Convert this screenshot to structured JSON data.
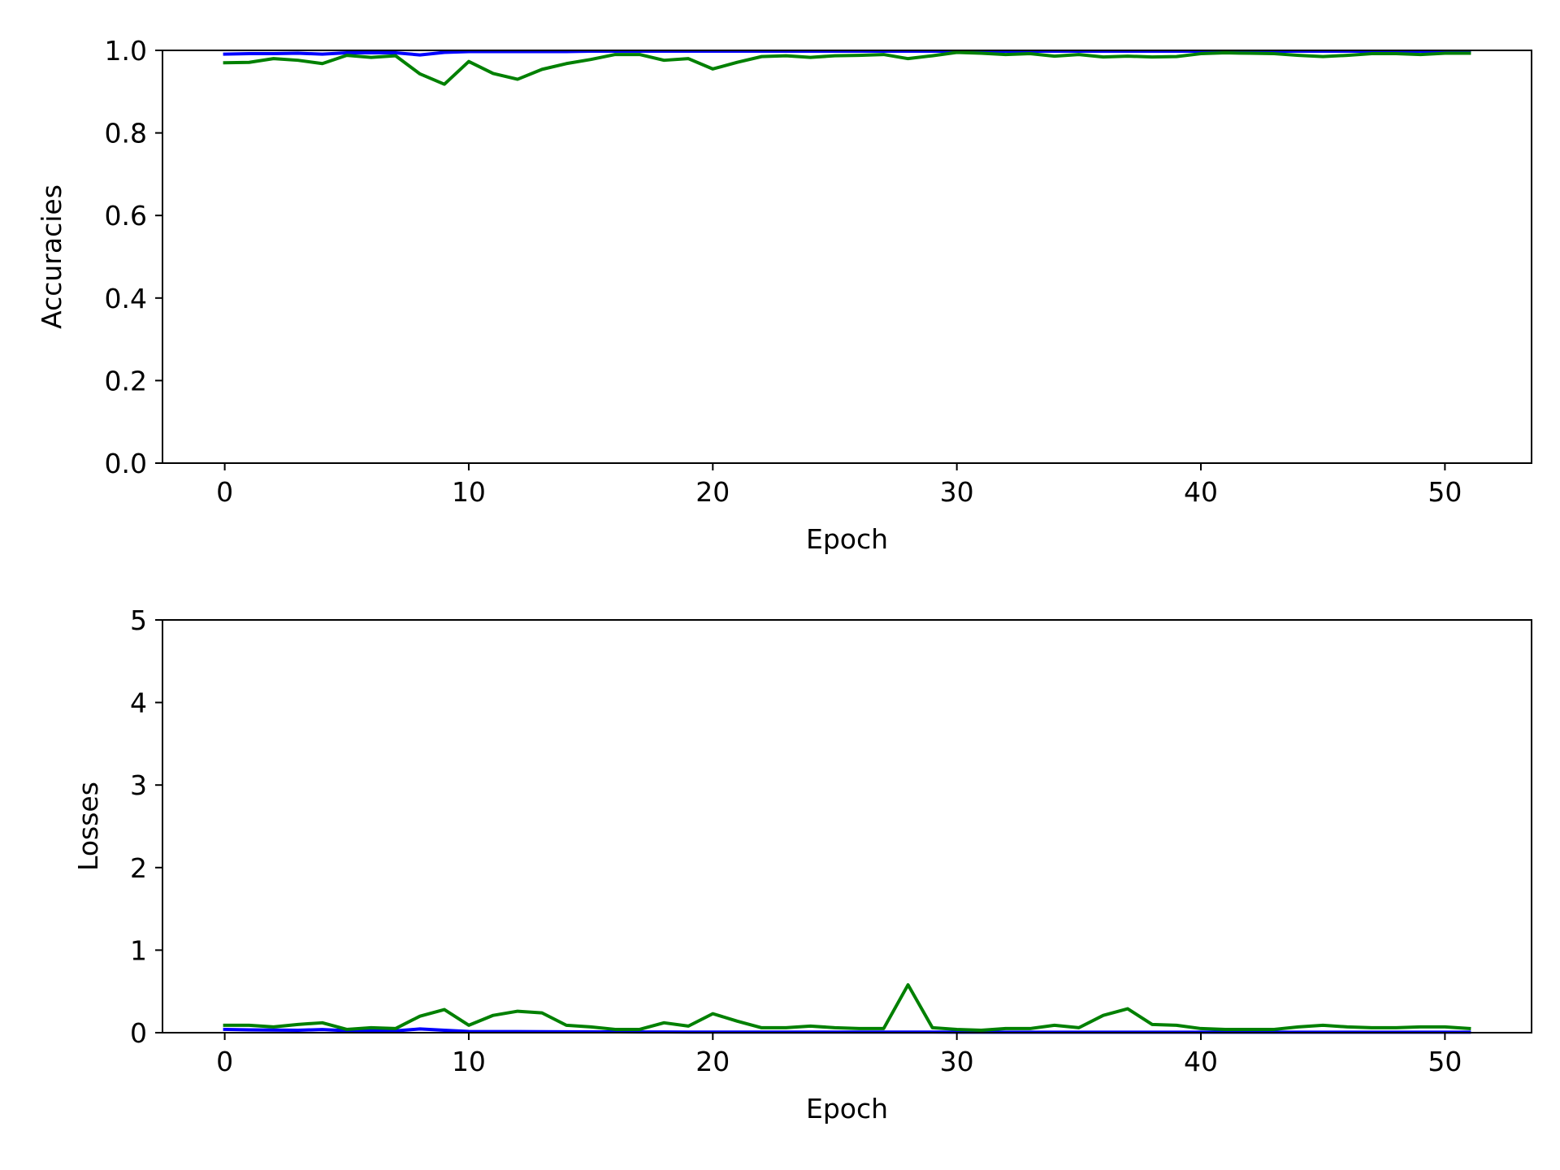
{
  "chart_data": [
    {
      "type": "line",
      "xlabel": "Epoch",
      "ylabel": "Accuracies",
      "xlim": [
        -2.55,
        53.55
      ],
      "ylim": [
        0.0,
        1.0
      ],
      "xticks": [
        0,
        10,
        20,
        30,
        40,
        50
      ],
      "yticks": [
        0.0,
        0.2,
        0.4,
        0.6,
        0.8,
        1.0
      ],
      "xtick_labels": [
        "0",
        "10",
        "20",
        "30",
        "40",
        "50"
      ],
      "ytick_labels": [
        "0.0",
        "0.2",
        "0.4",
        "0.6",
        "0.8",
        "1.0"
      ],
      "grid": false,
      "legend": "none",
      "series": [
        {
          "color": "#0000ff",
          "x": [
            0,
            1,
            2,
            3,
            4,
            5,
            6,
            7,
            8,
            9,
            10,
            11,
            12,
            13,
            14,
            15,
            16,
            17,
            18,
            19,
            20,
            21,
            22,
            23,
            24,
            25,
            26,
            27,
            28,
            29,
            30,
            31,
            32,
            33,
            34,
            35,
            36,
            37,
            38,
            39,
            40,
            41,
            42,
            43,
            44,
            45,
            46,
            47,
            48,
            49,
            50,
            51
          ],
          "y": [
            0.991,
            0.992,
            0.992,
            0.993,
            0.991,
            0.994,
            0.994,
            0.994,
            0.989,
            0.995,
            0.997,
            0.997,
            0.997,
            0.997,
            0.997,
            0.998,
            0.998,
            0.998,
            0.998,
            0.998,
            0.998,
            0.998,
            0.998,
            0.998,
            0.998,
            0.998,
            0.998,
            0.998,
            0.998,
            0.998,
            0.998,
            0.998,
            0.998,
            0.998,
            0.998,
            0.998,
            0.998,
            0.998,
            0.998,
            0.998,
            0.998,
            0.998,
            0.998,
            0.998,
            0.998,
            0.998,
            0.998,
            0.998,
            0.998,
            0.998,
            0.998,
            0.998
          ]
        },
        {
          "color": "#008000",
          "x": [
            0,
            1,
            2,
            3,
            4,
            5,
            6,
            7,
            8,
            9,
            10,
            11,
            12,
            13,
            14,
            15,
            16,
            17,
            18,
            19,
            20,
            21,
            22,
            23,
            24,
            25,
            26,
            27,
            28,
            29,
            30,
            31,
            32,
            33,
            34,
            35,
            36,
            37,
            38,
            39,
            40,
            41,
            42,
            43,
            44,
            45,
            46,
            47,
            48,
            49,
            50,
            51
          ],
          "y": [
            0.97,
            0.971,
            0.98,
            0.976,
            0.968,
            0.988,
            0.983,
            0.987,
            0.943,
            0.918,
            0.973,
            0.944,
            0.93,
            0.954,
            0.968,
            0.978,
            0.99,
            0.99,
            0.976,
            0.98,
            0.955,
            0.971,
            0.985,
            0.987,
            0.983,
            0.987,
            0.988,
            0.99,
            0.98,
            0.987,
            0.995,
            0.993,
            0.99,
            0.992,
            0.986,
            0.99,
            0.984,
            0.986,
            0.984,
            0.985,
            0.992,
            0.994,
            0.993,
            0.992,
            0.988,
            0.985,
            0.988,
            0.992,
            0.992,
            0.99,
            0.993,
            0.993
          ]
        }
      ]
    },
    {
      "type": "line",
      "xlabel": "Epoch",
      "ylabel": "Losses",
      "xlim": [
        -2.55,
        53.55
      ],
      "ylim": [
        0,
        5
      ],
      "xticks": [
        0,
        10,
        20,
        30,
        40,
        50
      ],
      "yticks": [
        0,
        1,
        2,
        3,
        4,
        5
      ],
      "xtick_labels": [
        "0",
        "10",
        "20",
        "30",
        "40",
        "50"
      ],
      "ytick_labels": [
        "0",
        "1",
        "2",
        "3",
        "4",
        "5"
      ],
      "grid": false,
      "legend": "none",
      "series": [
        {
          "color": "#0000ff",
          "x": [
            0,
            1,
            2,
            3,
            4,
            5,
            6,
            7,
            8,
            9,
            10,
            11,
            12,
            13,
            14,
            15,
            16,
            17,
            18,
            19,
            20,
            21,
            22,
            23,
            24,
            25,
            26,
            27,
            28,
            29,
            30,
            31,
            32,
            33,
            34,
            35,
            36,
            37,
            38,
            39,
            40,
            41,
            42,
            43,
            44,
            45,
            46,
            47,
            48,
            49,
            50,
            51
          ],
          "y": [
            0.04,
            0.035,
            0.032,
            0.03,
            0.038,
            0.025,
            0.022,
            0.022,
            0.045,
            0.03,
            0.015,
            0.014,
            0.013,
            0.012,
            0.011,
            0.01,
            0.01,
            0.009,
            0.009,
            0.008,
            0.008,
            0.008,
            0.008,
            0.007,
            0.007,
            0.007,
            0.007,
            0.007,
            0.007,
            0.007,
            0.006,
            0.006,
            0.006,
            0.006,
            0.006,
            0.006,
            0.006,
            0.006,
            0.006,
            0.006,
            0.006,
            0.006,
            0.006,
            0.006,
            0.006,
            0.006,
            0.006,
            0.006,
            0.006,
            0.006,
            0.006,
            0.006
          ]
        },
        {
          "color": "#008000",
          "x": [
            0,
            1,
            2,
            3,
            4,
            5,
            6,
            7,
            8,
            9,
            10,
            11,
            12,
            13,
            14,
            15,
            16,
            17,
            18,
            19,
            20,
            21,
            22,
            23,
            24,
            25,
            26,
            27,
            28,
            29,
            30,
            31,
            32,
            33,
            34,
            35,
            36,
            37,
            38,
            39,
            40,
            41,
            42,
            43,
            44,
            45,
            46,
            47,
            48,
            49,
            50,
            51
          ],
          "y": [
            0.09,
            0.09,
            0.07,
            0.1,
            0.12,
            0.04,
            0.06,
            0.05,
            0.2,
            0.28,
            0.09,
            0.21,
            0.26,
            0.24,
            0.09,
            0.07,
            0.04,
            0.04,
            0.12,
            0.08,
            0.23,
            0.14,
            0.06,
            0.06,
            0.08,
            0.06,
            0.05,
            0.05,
            0.58,
            0.06,
            0.04,
            0.03,
            0.05,
            0.05,
            0.09,
            0.06,
            0.21,
            0.29,
            0.1,
            0.09,
            0.05,
            0.04,
            0.04,
            0.04,
            0.07,
            0.09,
            0.07,
            0.06,
            0.06,
            0.07,
            0.07,
            0.05
          ]
        }
      ]
    }
  ]
}
